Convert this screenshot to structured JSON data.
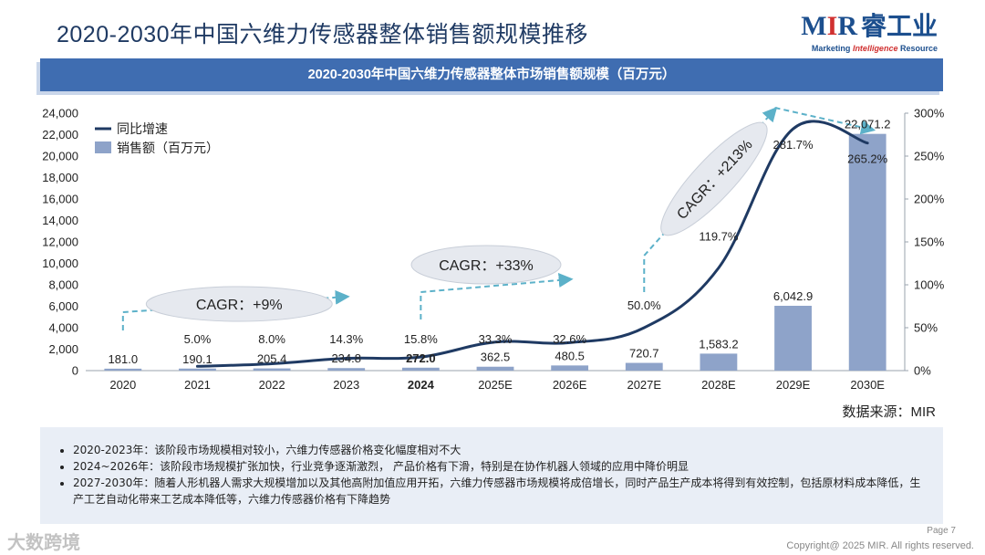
{
  "page": {
    "title": "2020-2030年中国六维力传感器整体销售额规模推移",
    "banner": "2020-2030年中国六维力传感器整体市场销售额规模（百万元）",
    "source": "数据来源：MIR",
    "page_number": "Page 7",
    "copyright": "Copyright@ 2025 MIR. All rights reserved.",
    "watermark": "大数跨境"
  },
  "logo": {
    "mir_m": "M",
    "mir_i": "I",
    "mir_r": "R",
    "cn": "睿工业",
    "sub_left": "Marketing",
    "sub_mid": "Intelligence",
    "sub_right": "Resource"
  },
  "notes": [
    "2020-2023年：该阶段市场规模相对较小，六维力传感器价格变化幅度相对不大",
    "2024~2026年：该阶段市场规模扩张加快，行业竞争逐渐激烈，  产品价格有下滑，特别是在协作机器人领域的应用中降价明显",
    "2027-2030年：随着人形机器人需求大规模增加以及其他高附加值应用开拓，六维力传感器市场规模将成倍增长，同时产品生产成本将得到有效控制，包括原材料成本降低，生产工艺自动化带来工艺成本降低等，六维力传感器价格有下降趋势"
  ],
  "colors": {
    "bar": "#8ea3c9",
    "line": "#1f3a63",
    "banner": "#3f6db1",
    "arrow": "#5cb1c9"
  },
  "chart_data": {
    "type": "bar",
    "categories": [
      "2020",
      "2021",
      "2022",
      "2023",
      "2024",
      "2025E",
      "2026E",
      "2027E",
      "2028E",
      "2029E",
      "2030E"
    ],
    "bold_category": "2024",
    "series": [
      {
        "name": "销售额（百万元）",
        "type": "bar",
        "axis": "left",
        "values": [
          181.0,
          190.1,
          205.4,
          234.8,
          272.0,
          362.5,
          480.5,
          720.7,
          1583.2,
          6042.9,
          22071.2
        ],
        "labels": [
          "181.0",
          "190.1",
          "205.4",
          "234.8",
          "272.0",
          "362.5",
          "480.5",
          "720.7",
          "1,583.2",
          "6,042.9",
          "22,071.2"
        ]
      },
      {
        "name": "同比增速",
        "type": "line",
        "axis": "right",
        "values": [
          null,
          5.0,
          8.0,
          14.3,
          15.8,
          33.3,
          32.6,
          50.0,
          119.7,
          281.7,
          265.2
        ],
        "labels": [
          "",
          "5.0%",
          "8.0%",
          "14.3%",
          "15.8%",
          "33.3%",
          "32.6%",
          "50.0%",
          "119.7%",
          "281.7%",
          "265.2%"
        ]
      }
    ],
    "y_left": {
      "range": [
        0,
        24000
      ],
      "ticks": [
        "0",
        "2,000",
        "4,000",
        "6,000",
        "8,000",
        "10,000",
        "12,000",
        "14,000",
        "16,000",
        "18,000",
        "20,000",
        "22,000",
        "24,000"
      ]
    },
    "y_right": {
      "range": [
        0,
        300
      ],
      "ticks": [
        "0%",
        "50%",
        "100%",
        "150%",
        "200%",
        "250%",
        "300%"
      ]
    },
    "legend": {
      "position": "top-left",
      "line_label": "同比增速",
      "bar_label": "销售额（百万元）"
    },
    "annotations": [
      {
        "label": "CAGR：+9%"
      },
      {
        "label": "CAGR：+33%"
      },
      {
        "label": "CAGR：+213%"
      }
    ]
  }
}
